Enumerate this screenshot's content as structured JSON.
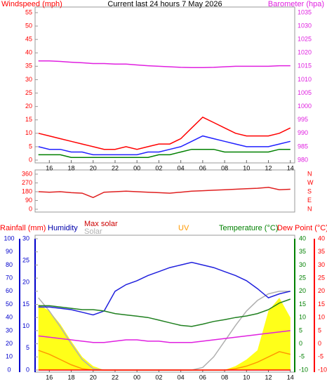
{
  "chart_data": [
    {
      "type": "line",
      "title": "Current last 24 hours 7 May 2026",
      "ylabel": "Windspeed (mph)",
      "y2label": "Barometer (hpa)",
      "ylabel_color": "#ff0000",
      "y2label_color": "#e020e0",
      "xlim": [
        14.7,
        38.4
      ],
      "xticks": [
        16,
        18,
        20,
        22,
        {
          "value": 24,
          "label": "00"
        },
        {
          "value": 26,
          "label": "02"
        },
        {
          "value": 28,
          "label": "04"
        },
        {
          "value": 30,
          "label": "06"
        },
        {
          "value": 32,
          "label": "08"
        },
        {
          "value": 34,
          "label": "10"
        },
        {
          "value": 36,
          "label": "12"
        },
        {
          "value": 38,
          "label": "14"
        }
      ],
      "ylim": [
        0,
        55
      ],
      "yticks": [
        0,
        5,
        10,
        15,
        20,
        25,
        30,
        35,
        40,
        45,
        50,
        55
      ],
      "y_color": "#ff0000",
      "y2lim": [
        980,
        1035
      ],
      "y2ticks": [
        980,
        985,
        990,
        995,
        1000,
        1005,
        1010,
        1015,
        1020,
        1025,
        1030,
        1035
      ],
      "y2_color": "#e020e0",
      "x": [
        15,
        16,
        17,
        18,
        19,
        20,
        21,
        22,
        23,
        24,
        25,
        26,
        27,
        28,
        29,
        30,
        31,
        32,
        33,
        34,
        35,
        36,
        37,
        38
      ],
      "series": [
        {
          "color": "#ff0000",
          "values": [
            10,
            9,
            8,
            7,
            6,
            5,
            4,
            4,
            5,
            4,
            5,
            6,
            6,
            8,
            12,
            16,
            14,
            12,
            10,
            9,
            9,
            9,
            10,
            12
          ]
        },
        {
          "color": "#2020ff",
          "values": [
            5,
            4,
            4,
            3,
            3,
            2,
            2,
            2,
            2,
            2,
            3,
            3,
            4,
            5,
            7,
            9,
            8,
            7,
            6,
            5,
            5,
            5,
            6,
            7
          ]
        },
        {
          "color": "#008000",
          "values": [
            2,
            2,
            2,
            1,
            1,
            1,
            1,
            1,
            1,
            1,
            1,
            2,
            2,
            3,
            4,
            4,
            4,
            3,
            3,
            3,
            3,
            3,
            4,
            4
          ]
        },
        {
          "color": "#e020e0",
          "axis": "y2",
          "values": [
            1017,
            1017,
            1016.8,
            1016.5,
            1016.3,
            1016,
            1016,
            1015.8,
            1015.8,
            1015.5,
            1015.2,
            1015,
            1014.8,
            1014.6,
            1014.5,
            1014.5,
            1014.6,
            1014.8,
            1015,
            1015,
            1015,
            1015,
            1015.2,
            1015.2
          ]
        }
      ]
    },
    {
      "type": "line",
      "xlim": [
        14.7,
        38.4
      ],
      "ylim": [
        0,
        360
      ],
      "yticks": [
        0,
        90,
        180,
        270,
        360
      ],
      "y_color": "#ff0000",
      "compass_ticks": [
        {
          "value": 360,
          "label": "N"
        },
        {
          "value": 270,
          "label": "W"
        },
        {
          "value": 180,
          "label": "S"
        },
        {
          "value": 90,
          "label": "E"
        },
        {
          "value": 0,
          "label": "N"
        }
      ],
      "compass_color": "#ff0000",
      "x": [
        15,
        16,
        17,
        18,
        19,
        20,
        21,
        22,
        23,
        24,
        25,
        26,
        27,
        28,
        29,
        30,
        31,
        32,
        33,
        34,
        35,
        36,
        37,
        38
      ],
      "series": [
        {
          "color": "#e02020",
          "values": [
            180,
            175,
            180,
            170,
            165,
            120,
            175,
            180,
            185,
            180,
            175,
            170,
            165,
            175,
            185,
            190,
            195,
            200,
            205,
            210,
            215,
            225,
            200,
            205
          ]
        }
      ]
    },
    {
      "type": "line",
      "xlim": [
        14.7,
        38.4
      ],
      "xticks": [
        16,
        18,
        20,
        22,
        {
          "value": 24,
          "label": "00"
        },
        {
          "value": 26,
          "label": "02"
        },
        {
          "value": 28,
          "label": "04"
        },
        {
          "value": 30,
          "label": "06"
        },
        {
          "value": 32,
          "label": "08"
        },
        {
          "value": 34,
          "label": "10"
        },
        {
          "value": 36,
          "label": "12"
        },
        {
          "value": 38,
          "label": "14"
        }
      ],
      "ylim": [
        0,
        100
      ],
      "yticks": [
        0,
        10,
        20,
        30,
        40,
        50,
        60,
        70,
        80,
        90,
        100
      ],
      "y_color": "#0000cc",
      "y3lim": [
        0,
        30
      ],
      "y3ticks": [
        0,
        5,
        10,
        15,
        20,
        25,
        30
      ],
      "y3_color": "#0000cc",
      "y2lim": [
        -10,
        40
      ],
      "y2ticks": [
        -10,
        -5,
        0,
        5,
        10,
        15,
        20,
        25,
        30,
        35,
        40
      ],
      "y2_color": "#008000",
      "y4lim": [
        -10,
        40
      ],
      "y4ticks": [
        -10,
        -5,
        0,
        5,
        10,
        15,
        20,
        25,
        30,
        35,
        40
      ],
      "y4_color": "#ff0000",
      "x": [
        15,
        16,
        17,
        18,
        19,
        20,
        21,
        22,
        23,
        24,
        25,
        26,
        27,
        28,
        29,
        30,
        31,
        32,
        33,
        34,
        35,
        36,
        37,
        38
      ],
      "series": [
        {
          "name": "Solar",
          "color": "#ffff00",
          "label_color": "#b0b0b0",
          "fill": true,
          "values": [
            50,
            45,
            35,
            22,
            10,
            3,
            0,
            0,
            0,
            0,
            0,
            0,
            0,
            0,
            0,
            0,
            0,
            0,
            3,
            8,
            15,
            45,
            55,
            40
          ]
        },
        {
          "name": "Max solar",
          "color": "#b0b0b0",
          "label_color": "#cc0000",
          "values": [
            55,
            45,
            33,
            20,
            8,
            1,
            0,
            0,
            0,
            0,
            0,
            0,
            0,
            0,
            0,
            2,
            10,
            22,
            34,
            45,
            53,
            58,
            60,
            60
          ]
        },
        {
          "name": "UV",
          "color": "#ff9900",
          "label_color": "#ff9900",
          "values": [
            15,
            12,
            8,
            4,
            1,
            0,
            0,
            0,
            0,
            0,
            0,
            0,
            0,
            0,
            0,
            0,
            0,
            0,
            1,
            3,
            6,
            10,
            14,
            12
          ]
        },
        {
          "name": "Rainfall (mm)",
          "color": "#ff0000",
          "label_color": "#ff0000",
          "axis": "y3",
          "values": [
            0,
            0,
            0,
            0,
            0,
            0,
            0,
            0,
            0,
            0,
            0,
            0,
            0,
            0,
            0,
            0,
            0,
            0,
            0,
            0,
            0,
            0,
            0,
            0
          ]
        },
        {
          "name": "Humidity",
          "color": "#2020dd",
          "label_color": "#0000aa",
          "values": [
            48,
            48,
            47,
            46,
            44,
            42,
            45,
            60,
            65,
            68,
            72,
            75,
            78,
            80,
            82,
            80,
            78,
            75,
            72,
            68,
            62,
            55,
            58,
            60
          ]
        },
        {
          "name": "Temperature (°C)",
          "color": "#208020",
          "label_color": "#008000",
          "axis": "y2",
          "values": [
            14.5,
            14.5,
            14,
            13.5,
            13,
            13,
            12.5,
            11.5,
            11,
            10.5,
            10,
            9,
            8,
            7,
            6.6,
            7.5,
            8.5,
            9.2,
            10,
            10.6,
            11.5,
            13,
            15.5,
            17
          ]
        },
        {
          "name": "Dew Point (°C)",
          "color": "#e020e0",
          "label_color": "#ff0000",
          "axis": "y4",
          "values": [
            3,
            2.5,
            2,
            1.5,
            1,
            0.5,
            0.5,
            1,
            1.5,
            1.5,
            1,
            1,
            0.5,
            0.5,
            0.5,
            1,
            1.5,
            2,
            2.5,
            3,
            3.5,
            4,
            4.5,
            5
          ]
        }
      ]
    }
  ]
}
